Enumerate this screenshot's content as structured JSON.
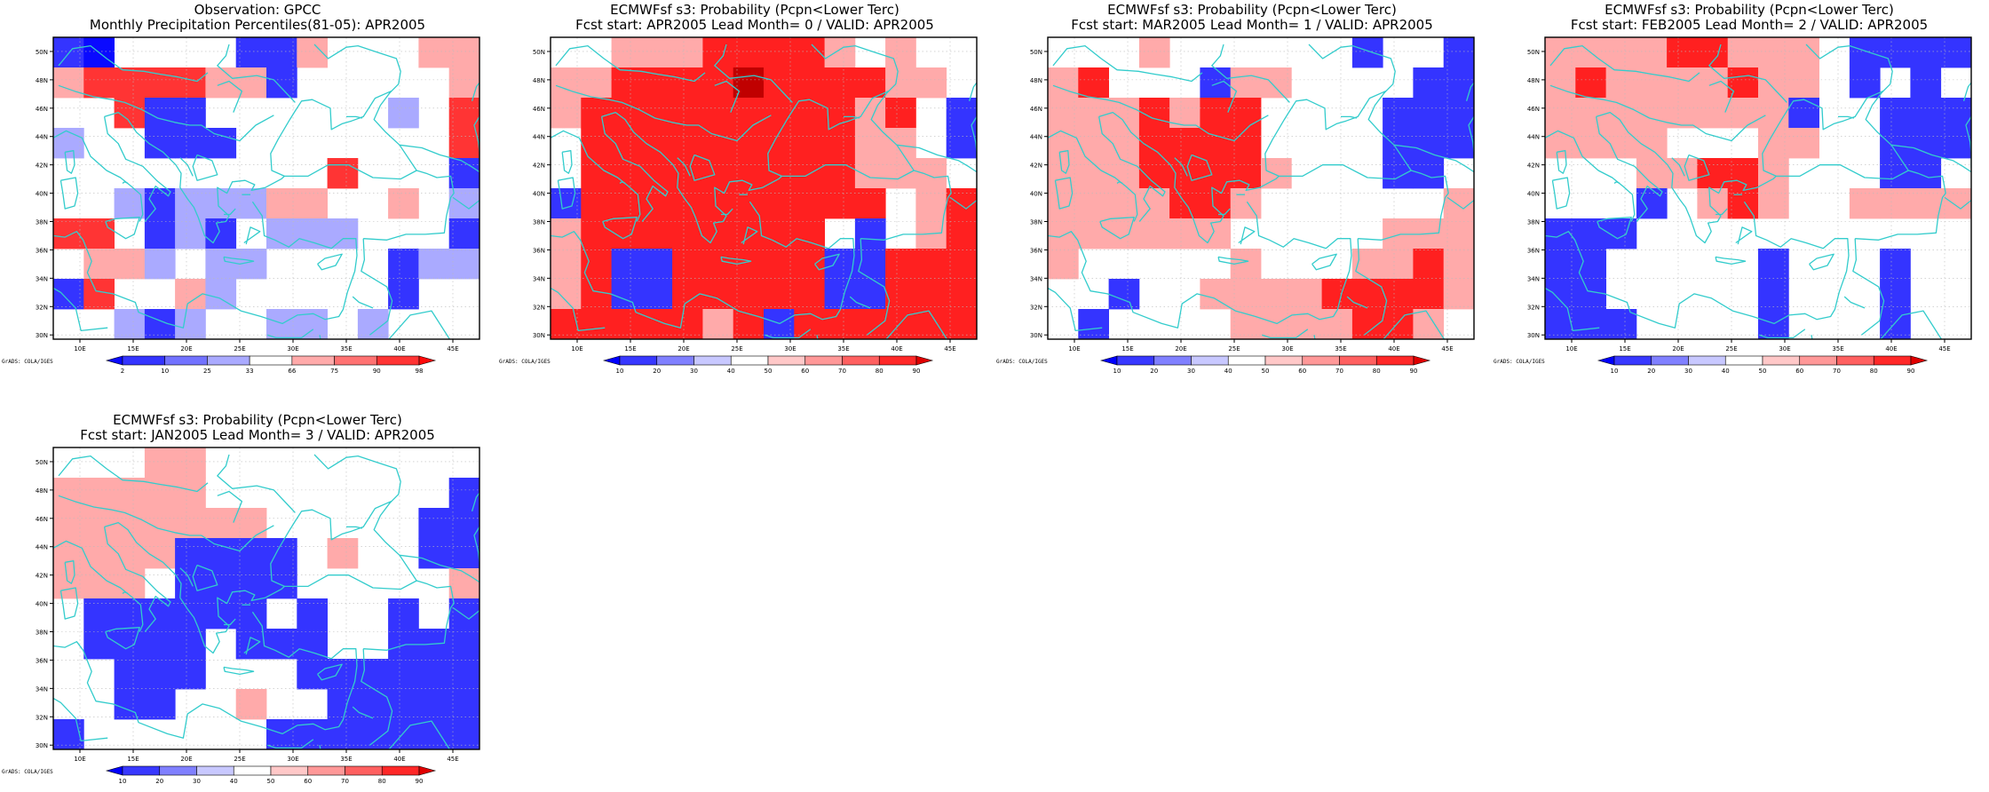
{
  "panels": [
    {
      "id": "obs",
      "title_line1": "Observation: GPCC",
      "title_line2": "Monthly Precipitation Percentiles(81-05): APR2005",
      "credit": "GrADS: COLA/IGES",
      "legend": {
        "labels": [
          "2",
          "10",
          "25",
          "33",
          "66",
          "75",
          "90",
          "98"
        ],
        "colors": [
          "#0a0aff",
          "#3434ff",
          "#7272ff",
          "#aaaaff",
          "#ffffff",
          "#ffaaaa",
          "#ff7272",
          "#ff3434",
          "#ff0a0a"
        ]
      },
      "grid": [
        "#0....##r...rr",
        "rRRRRrr#.....r",
        "..R##......b.R",
        "b..###.......R",
        ".........R...#",
        "..b#bbbrr..r.b",
        "RR.#b#.bbb...#",
        ".rrb.bb....#bb",
        "#R..rb.....#..",
        "..b#b..bb.b..."
      ]
    },
    {
      "id": "lead0",
      "title_line1": "ECMWFsf s3: Probability (Pcpn<Lower Terc)",
      "title_line2": "Fcst start: APR2005   Lead Month= 0 / VALID: APR2005",
      "credit": "GrADS: COLA/IGES",
      "legend": {
        "labels": [
          "10",
          "20",
          "30",
          "40",
          "50",
          "60",
          "70",
          "80",
          "90"
        ],
        "colors": [
          "#0000ff",
          "#3838ff",
          "#8080ff",
          "#c8c8ff",
          "#ffffff",
          "#ffc8c8",
          "#ff9898",
          "#ff6060",
          "#ff2828",
          "#e00000"
        ]
      },
      "grid": [
        "..rrrRRRRr.r..",
        "rrRRRRDRRRRrr.",
        "rRRRRRRRRRrR.b",
        ".RRRRRRRRRrr.b",
        ".RRRRRRRRRrrr.",
        "bRRRRRRRRRR.rR",
        "rRRRRRRRR.b.rR",
        "rRbbRRRRRbbRRR",
        "rRbbRRRRRbbRRR",
        "RRRRRrRbRRRRRR"
      ]
    },
    {
      "id": "lead1",
      "title_line1": "ECMWFsf s3: Probability (Pcpn<Lower Terc)",
      "title_line2": "Fcst start: MAR2005   Lead Month= 1 / VALID: APR2005",
      "credit": "GrADS: COLA/IGES",
      "legend": {
        "labels": [
          "10",
          "20",
          "30",
          "40",
          "50",
          "60",
          "70",
          "80",
          "90"
        ],
        "colors": [
          "#0000ff",
          "#3838ff",
          "#8080ff",
          "#c8c8ff",
          "#ffffff",
          "#ffc8c8",
          "#ff9898",
          "#ff6060",
          "#ff2828",
          "#e00000"
        ]
      },
      "grid": [
        "...r......b..b",
        "rR...brr....bb",
        "rrrRrRR....bbb",
        "rrrRRRR....bbb",
        "rrrRRRRr...bb.",
        "rrrrRRr......r",
        "rrrrrr.....rrr",
        "r.....r...rrRr",
        "..b..rrrrRRRRr",
        ".b....rrrrRRr."
      ]
    },
    {
      "id": "lead2",
      "title_line1": "ECMWFsf s3: Probability (Pcpn<Lower Terc)",
      "title_line2": "Fcst start: FEB2005   Lead Month= 2 / VALID: APR2005",
      "credit": "GrADS: COLA/IGES",
      "legend": {
        "labels": [
          "10",
          "20",
          "30",
          "40",
          "50",
          "60",
          "70",
          "80",
          "90"
        ],
        "colors": [
          "#0000ff",
          "#3838ff",
          "#8080ff",
          "#c8c8ff",
          "#ffffff",
          "#ffc8c8",
          "#ff9898",
          "#ff6060",
          "#ff2828",
          "#e00000"
        ]
      },
      "grid": [
        "rrrrRRrrr.bbbb",
        "rRrrrrRrr.b.b.",
        "rrrrrrrrb..bbb",
        "rrrr...rr..bbb",
        "...rrRRr...bb.",
        "...b.rRr..rrrr",
        "bbb...........",
        "bb.....b...b..",
        "bb.....b...b..",
        "bbb....b...b.."
      ]
    },
    {
      "id": "lead3",
      "title_line1": "ECMWFsf s3: Probability (Pcpn<Lower Terc)",
      "title_line2": "Fcst start: JAN2005   Lead Month= 3 / VALID: APR2005",
      "credit": "GrADS: COLA/IGES",
      "legend": {
        "labels": [
          "10",
          "20",
          "30",
          "40",
          "50",
          "60",
          "70",
          "80",
          "90"
        ],
        "colors": [
          "#0000ff",
          "#3838ff",
          "#8080ff",
          "#c8c8ff",
          "#ffffff",
          "#ffc8c8",
          "#ff9898",
          "#ff6060",
          "#ff2828",
          "#e00000"
        ]
      },
      "grid": [
        "...rr.........",
        "rrrrr........b",
        "rrrrrrr.....bb",
        "rrrrbbbb.r..bb",
        "rrr.bbbb.....r",
        ".bbbbbb.b..b.b",
        ".bbbb.bbb..bbb",
        "..bbb...bbbbbb",
        "..bb..r..bbbbb",
        "b......bbbbbbb"
      ]
    }
  ],
  "cell_colors": {
    "obs": {
      ".": "#ffffff",
      "b": "#aaaaff",
      "B": "#7272ff",
      "#": "#3434ff",
      "0": "#0a0aff",
      "r": "#ffaaaa",
      "R": "#ff3434",
      "D": "#ff0a0a"
    },
    "fcst": {
      ".": "#ffffff",
      "b": "#3434ff",
      "r": "#ffaaaa",
      "R": "#ff2020",
      "D": "#c00000"
    }
  },
  "coast_color": "#33cccc",
  "map": {
    "lat_labels": [
      "50N",
      "48N",
      "46N",
      "44N",
      "42N",
      "40N",
      "38N",
      "36N",
      "34N",
      "32N",
      "30N"
    ],
    "lon_labels": [
      "10E",
      "15E",
      "20E",
      "25E",
      "30E",
      "35E",
      "40E",
      "45E"
    ],
    "lon_range": [
      7.5,
      47.5
    ],
    "lat_range": [
      29.7,
      51.0
    ]
  }
}
